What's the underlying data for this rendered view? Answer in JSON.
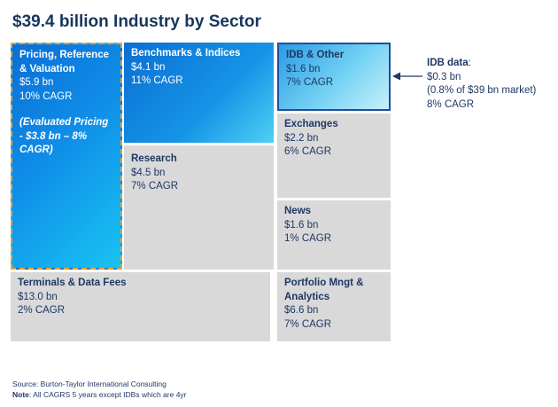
{
  "title": "$39.4 billion Industry by Sector",
  "tiles": {
    "pricing": {
      "name": "Pricing, Reference & Valuation",
      "value": "$5.9 bn",
      "growth": "10% CAGR",
      "note": "(Evaluated Pricing - $3.8 bn – 8% CAGR)"
    },
    "benchmarks": {
      "name": "Benchmarks & Indices",
      "value": "$4.1 bn",
      "growth": "11% CAGR"
    },
    "idb": {
      "name": "IDB & Other",
      "value": "$1.6 bn",
      "growth": "7% CAGR"
    },
    "research": {
      "name": "Research",
      "value": "$4.5 bn",
      "growth": "7% CAGR"
    },
    "exchanges": {
      "name": "Exchanges",
      "value": "$2.2 bn",
      "growth": "6% CAGR"
    },
    "news": {
      "name": "News",
      "value": "$1.6 bn",
      "growth": "1% CAGR"
    },
    "terminals": {
      "name": "Terminals & Data Fees",
      "value": "$13.0 bn",
      "growth": "2% CAGR"
    },
    "portfolio": {
      "name": "Portfolio Mngt & Analytics",
      "value": "$6.6 bn",
      "growth": "7% CAGR"
    }
  },
  "annotation": {
    "label": "IDB data",
    "value": "$0.3 bn",
    "detail": "(0.8% of $39 bn market)",
    "growth": "8% CAGR"
  },
  "footer": {
    "source": "Source: Burton-Taylor International Consulting",
    "note_label": "Note",
    "note_text": ": All CAGRS 5 years except IDBs which are 4yr"
  },
  "colors": {
    "title": "#17365d",
    "grey_tile": "#d9d9d9",
    "blue_dark": "#0a6fd6",
    "blue_light": "#19c3f3",
    "dashed_border": "#f0a030"
  }
}
